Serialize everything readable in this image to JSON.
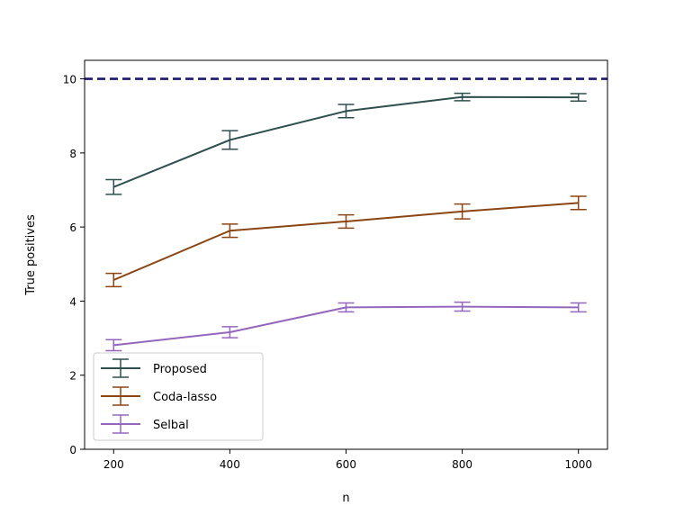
{
  "chart_data": {
    "type": "line",
    "xlabel": "n",
    "ylabel": "True positives",
    "x": [
      200,
      400,
      600,
      800,
      1000
    ],
    "xticks": [
      200,
      400,
      600,
      800,
      1000
    ],
    "yticks": [
      0,
      2,
      4,
      6,
      8,
      10
    ],
    "xlim": [
      150,
      1050
    ],
    "ylim": [
      0,
      10.5
    ],
    "reference_line": {
      "y": 10,
      "style": "dashed",
      "color": "#191970"
    },
    "legend_position": "lower-left",
    "grid": false,
    "series": [
      {
        "name": "Proposed",
        "color": "#2F4F4F",
        "values": [
          7.08,
          8.35,
          9.13,
          9.51,
          9.5
        ],
        "errors": [
          0.2,
          0.25,
          0.18,
          0.1,
          0.1
        ]
      },
      {
        "name": "Coda-lasso",
        "color": "#8B4513",
        "values": [
          4.57,
          5.9,
          6.15,
          6.42,
          6.65
        ],
        "errors": [
          0.18,
          0.18,
          0.18,
          0.2,
          0.18
        ]
      },
      {
        "name": "Selbal",
        "color": "#9467BD",
        "values": [
          2.81,
          3.16,
          3.83,
          3.85,
          3.83
        ],
        "errors": [
          0.15,
          0.15,
          0.12,
          0.12,
          0.12
        ]
      }
    ]
  }
}
